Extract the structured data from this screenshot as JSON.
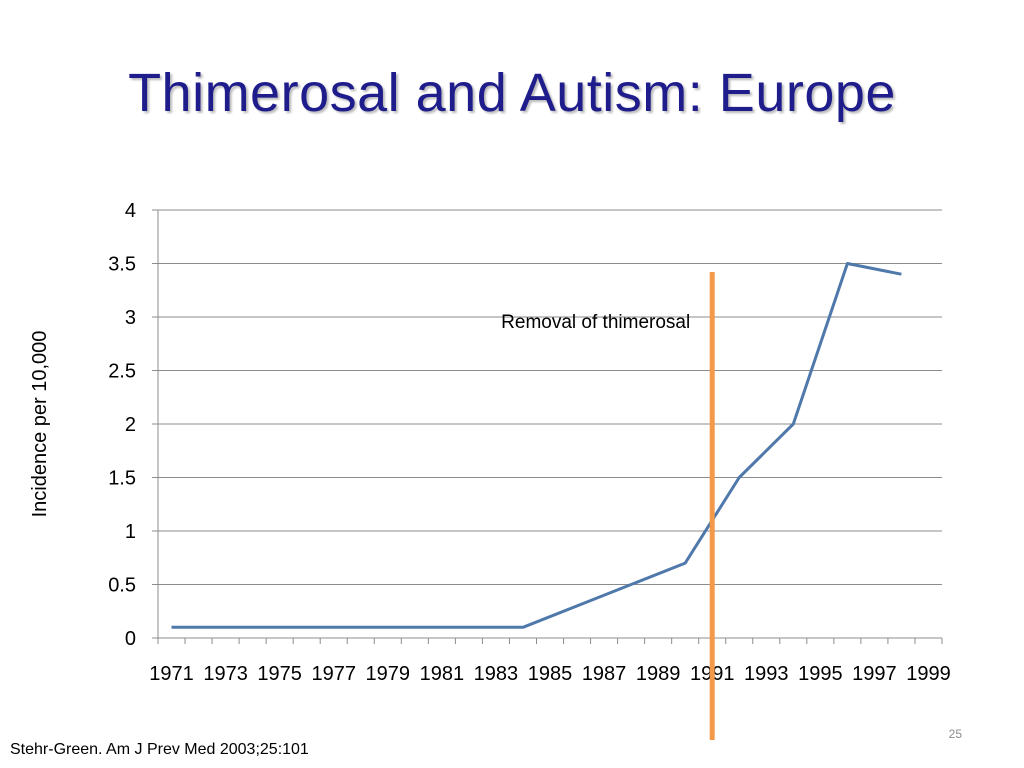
{
  "slide": {
    "title": "Thimerosal and Autism: Europe",
    "citation": "Stehr-Green. Am J Prev Med 2003;25:101",
    "page_number": "25"
  },
  "colors": {
    "title": "#1f1c8c",
    "series_line": "#4f78ab",
    "marker_line": "#f29a4a",
    "gridline": "#8c8c8c"
  },
  "chart_data": {
    "type": "line",
    "title": "",
    "xlabel": "",
    "ylabel": "Incidence per 10,000",
    "categories": [
      "1971",
      "1972",
      "1973",
      "1974",
      "1975",
      "1976",
      "1977",
      "1978",
      "1979",
      "1980",
      "1981",
      "1982",
      "1983",
      "1984",
      "1985",
      "1986",
      "1987",
      "1988",
      "1989",
      "1990",
      "1991",
      "1992",
      "1993",
      "1994",
      "1995",
      "1996",
      "1997",
      "1998",
      "1999"
    ],
    "tick_labels": [
      "1971",
      "1973",
      "1975",
      "1977",
      "1979",
      "1981",
      "1983",
      "1985",
      "1987",
      "1989",
      "1991",
      "1993",
      "1995",
      "1997",
      "1999"
    ],
    "x": [
      1971,
      1978,
      1984,
      1990,
      1992,
      1994,
      1996,
      1998
    ],
    "y": [
      0.1,
      0.1,
      0.1,
      0.7,
      1.5,
      2.0,
      3.5,
      3.4
    ],
    "ylim": [
      0,
      4
    ],
    "yticks": [
      0,
      0.5,
      1,
      1.5,
      2,
      2.5,
      3,
      3.5,
      4
    ],
    "ytick_labels": [
      "0",
      "0.5",
      "1",
      "1.5",
      "2",
      "2.5",
      "3",
      "3.5",
      "4"
    ],
    "grid": true,
    "legend": "none",
    "annotation": {
      "text": "Removal of thimerosal",
      "x": 1991
    }
  }
}
